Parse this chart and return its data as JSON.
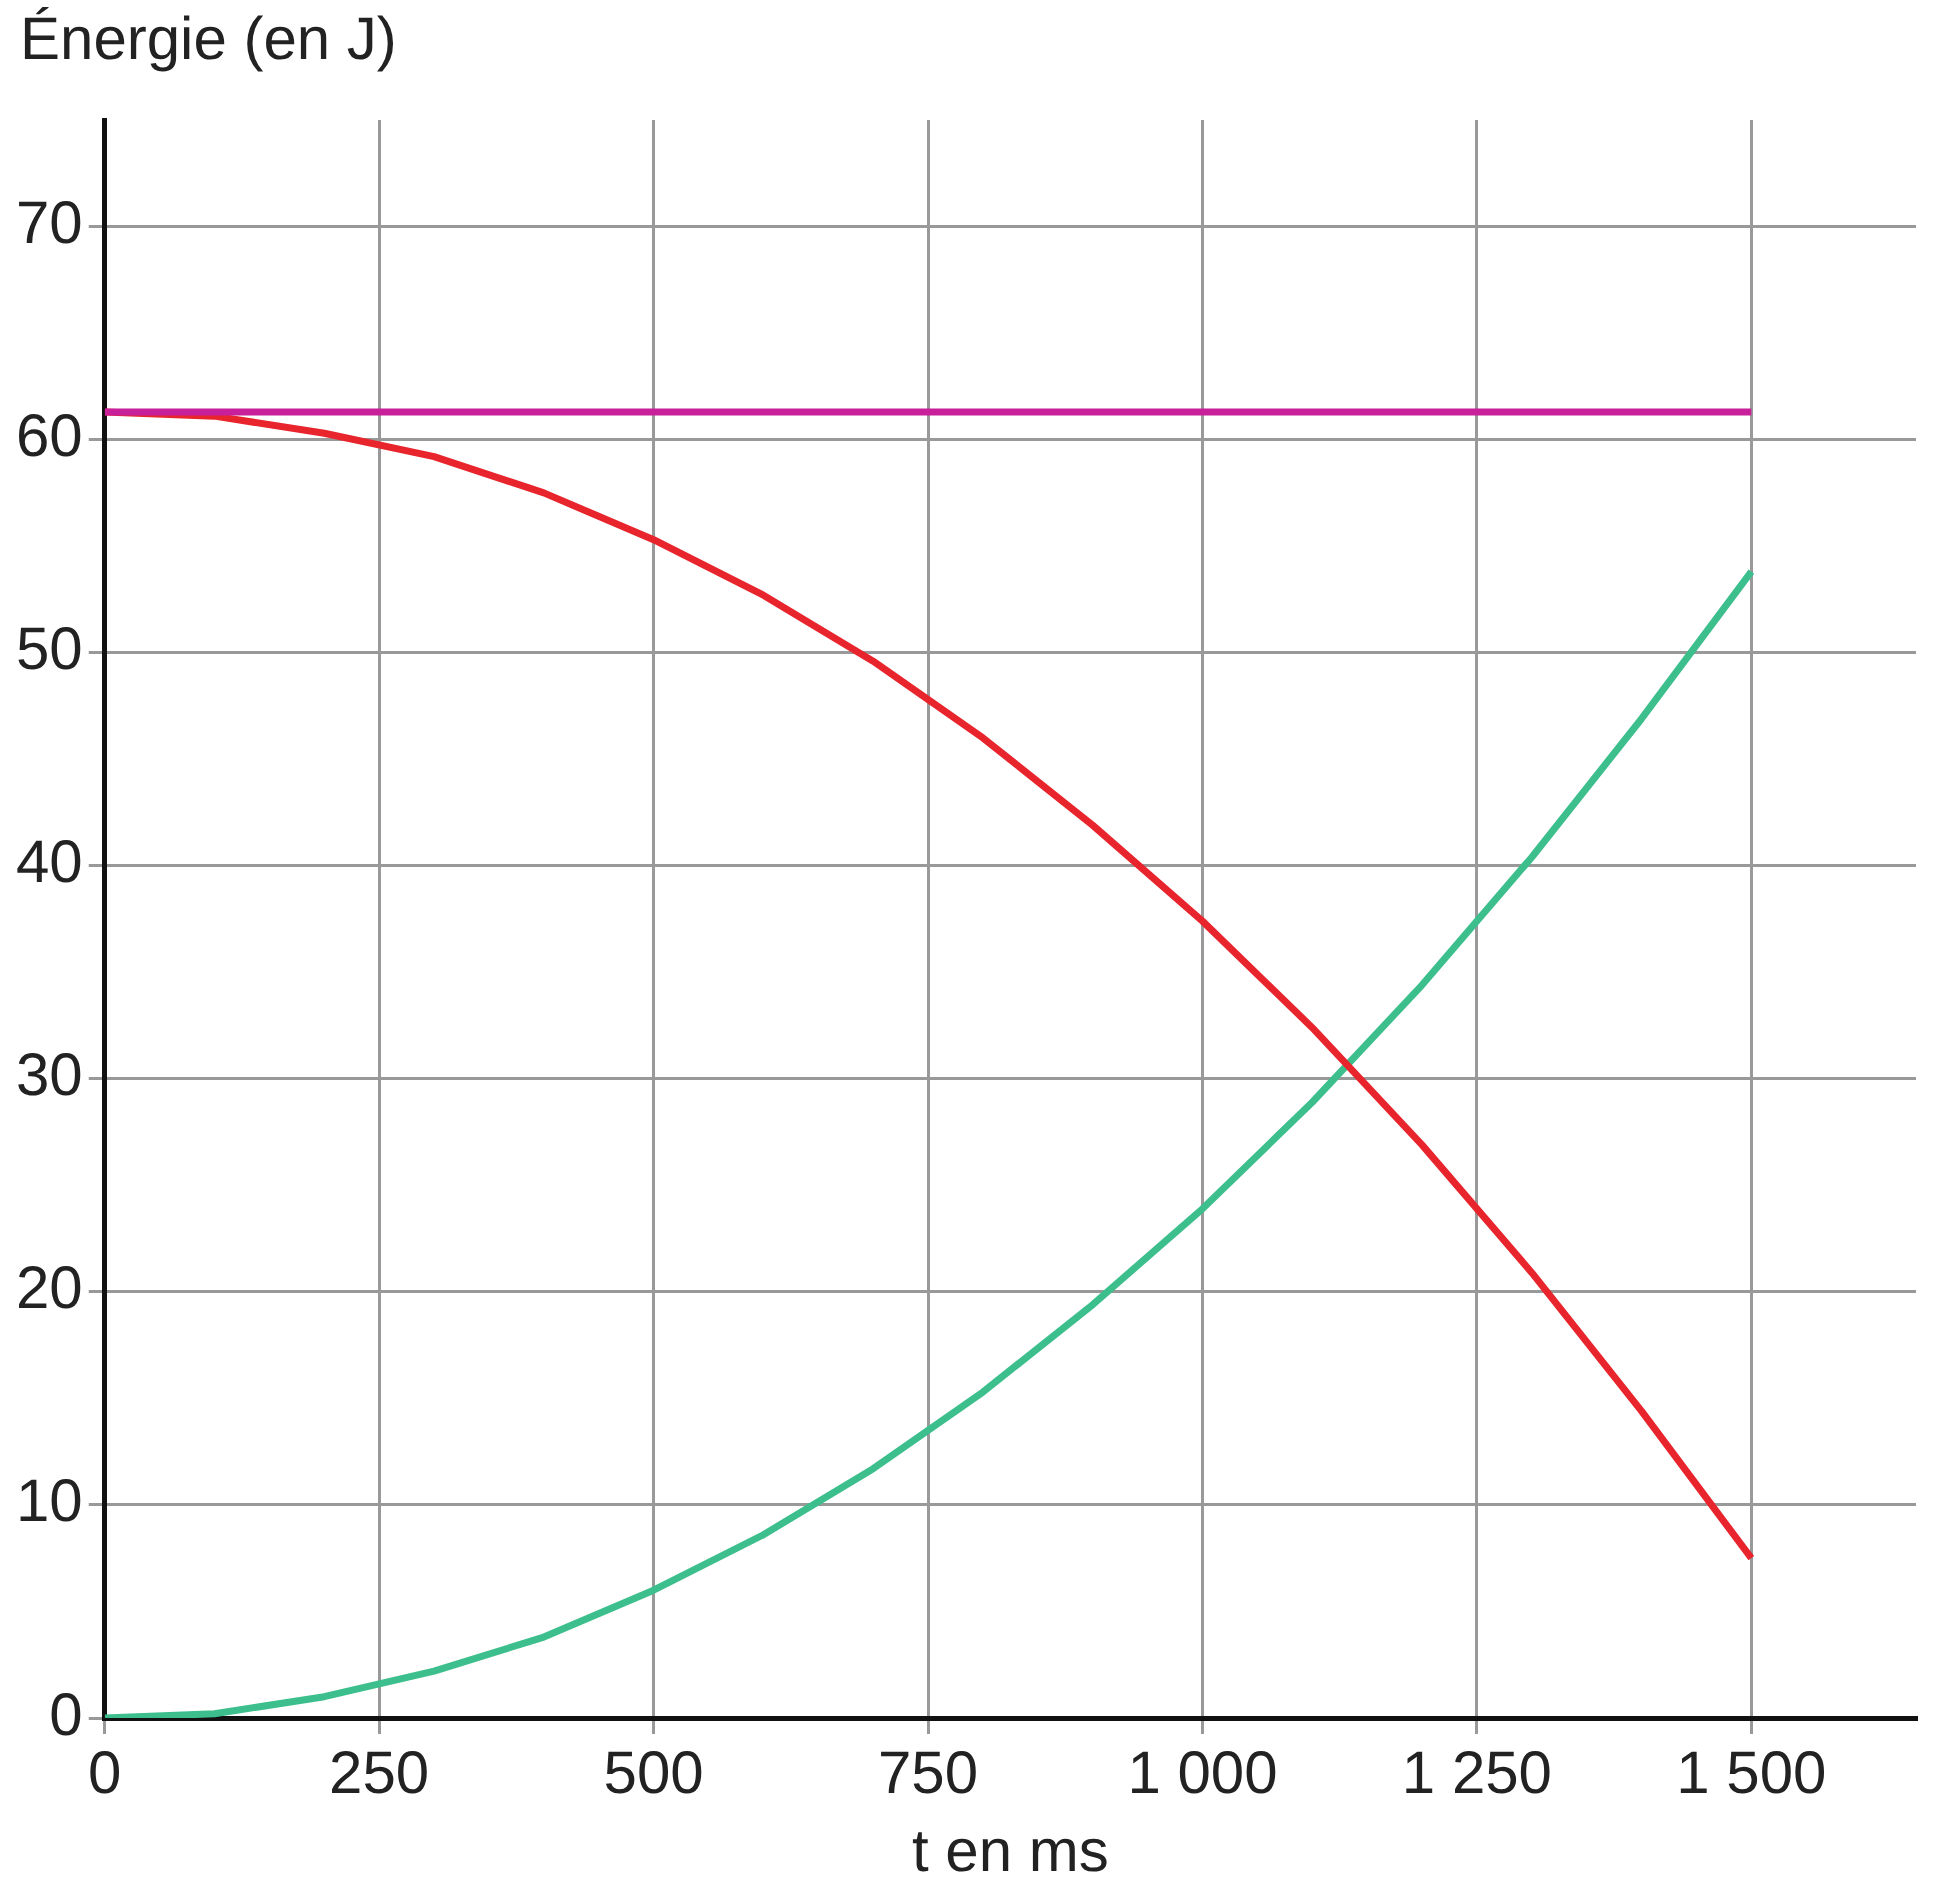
{
  "chart_data": {
    "type": "line",
    "ylabel": "Énergie (en J)",
    "xlabel": "t en ms",
    "x": [
      0,
      100,
      200,
      300,
      400,
      500,
      600,
      700,
      800,
      900,
      1000,
      1100,
      1200,
      1300,
      1400,
      1500
    ],
    "series": [
      {
        "color": "#c8209a",
        "values": [
          61.3,
          61.3,
          61.3,
          61.3,
          61.3,
          61.3,
          61.3,
          61.3,
          61.3,
          61.3,
          61.3,
          61.3,
          61.3,
          61.3,
          61.3,
          61.3
        ]
      },
      {
        "color": "#e8242c",
        "values": [
          61.3,
          61.1,
          60.3,
          59.2,
          57.5,
          55.3,
          52.7,
          49.6,
          46.0,
          41.9,
          37.4,
          32.4,
          26.9,
          20.9,
          14.4,
          7.5
        ]
      },
      {
        "color": "#3cbf8c",
        "values": [
          0,
          0.2,
          1.0,
          2.2,
          3.8,
          6.0,
          8.6,
          11.7,
          15.3,
          19.4,
          23.9,
          28.9,
          34.4,
          40.4,
          46.9,
          53.8
        ]
      }
    ],
    "xlim": [
      0,
      1650
    ],
    "ylim": [
      0,
      75
    ],
    "xticks": [
      0,
      250,
      500,
      750,
      {
        "value": 1000,
        "label": "1 000"
      },
      {
        "value": 1250,
        "label": "1 250"
      },
      {
        "value": 1500,
        "label": "1 500"
      }
    ],
    "yticks": [
      0,
      10,
      20,
      30,
      40,
      50,
      60,
      70
    ],
    "grid": true,
    "legend": false,
    "marker": "none",
    "line_style": "solid"
  }
}
